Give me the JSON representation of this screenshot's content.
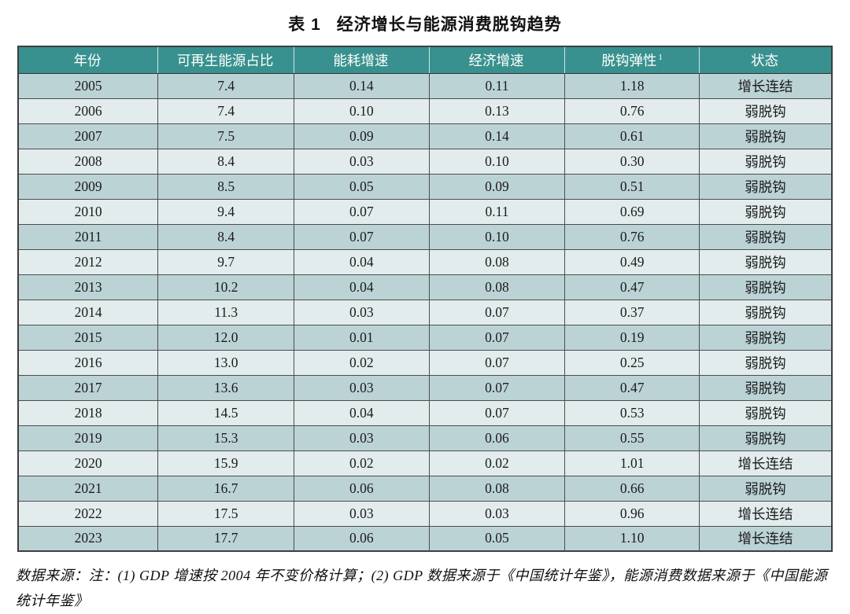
{
  "title": {
    "prefix": "表 1",
    "text": "经济增长与能源消费脱钩趋势"
  },
  "table": {
    "columns": [
      {
        "label": "年份",
        "sup": ""
      },
      {
        "label": "可再生能源占比",
        "sup": ""
      },
      {
        "label": "能耗增速",
        "sup": ""
      },
      {
        "label": "经济增速",
        "sup": ""
      },
      {
        "label": "脱钩弹性",
        "sup": "1"
      },
      {
        "label": "状态",
        "sup": ""
      }
    ],
    "rows": [
      [
        "2005",
        "7.4",
        "0.14",
        "0.11",
        "1.18",
        "增长连结"
      ],
      [
        "2006",
        "7.4",
        "0.10",
        "0.13",
        "0.76",
        "弱脱钩"
      ],
      [
        "2007",
        "7.5",
        "0.09",
        "0.14",
        "0.61",
        "弱脱钩"
      ],
      [
        "2008",
        "8.4",
        "0.03",
        "0.10",
        "0.30",
        "弱脱钩"
      ],
      [
        "2009",
        "8.5",
        "0.05",
        "0.09",
        "0.51",
        "弱脱钩"
      ],
      [
        "2010",
        "9.4",
        "0.07",
        "0.11",
        "0.69",
        "弱脱钩"
      ],
      [
        "2011",
        "8.4",
        "0.07",
        "0.10",
        "0.76",
        "弱脱钩"
      ],
      [
        "2012",
        "9.7",
        "0.04",
        "0.08",
        "0.49",
        "弱脱钩"
      ],
      [
        "2013",
        "10.2",
        "0.04",
        "0.08",
        "0.47",
        "弱脱钩"
      ],
      [
        "2014",
        "11.3",
        "0.03",
        "0.07",
        "0.37",
        "弱脱钩"
      ],
      [
        "2015",
        "12.0",
        "0.01",
        "0.07",
        "0.19",
        "弱脱钩"
      ],
      [
        "2016",
        "13.0",
        "0.02",
        "0.07",
        "0.25",
        "弱脱钩"
      ],
      [
        "2017",
        "13.6",
        "0.03",
        "0.07",
        "0.47",
        "弱脱钩"
      ],
      [
        "2018",
        "14.5",
        "0.04",
        "0.07",
        "0.53",
        "弱脱钩"
      ],
      [
        "2019",
        "15.3",
        "0.03",
        "0.06",
        "0.55",
        "弱脱钩"
      ],
      [
        "2020",
        "15.9",
        "0.02",
        "0.02",
        "1.01",
        "增长连结"
      ],
      [
        "2021",
        "16.7",
        "0.06",
        "0.08",
        "0.66",
        "弱脱钩"
      ],
      [
        "2022",
        "17.5",
        "0.03",
        "0.03",
        "0.96",
        "增长连结"
      ],
      [
        "2023",
        "17.7",
        "0.06",
        "0.05",
        "1.10",
        "增长连结"
      ]
    ]
  },
  "footnote": {
    "text": "数据来源：注：(1) GDP 增速按 2004 年不变价格计算；(2) GDP 数据来源于《中国统计年鉴》，能源消费数据来源于《中国能源统计年鉴》"
  },
  "colors": {
    "header_bg": "#38918E",
    "row_dark": "#BCD3D6",
    "row_light": "#E2ECED",
    "grid": "#4C4C4C"
  }
}
